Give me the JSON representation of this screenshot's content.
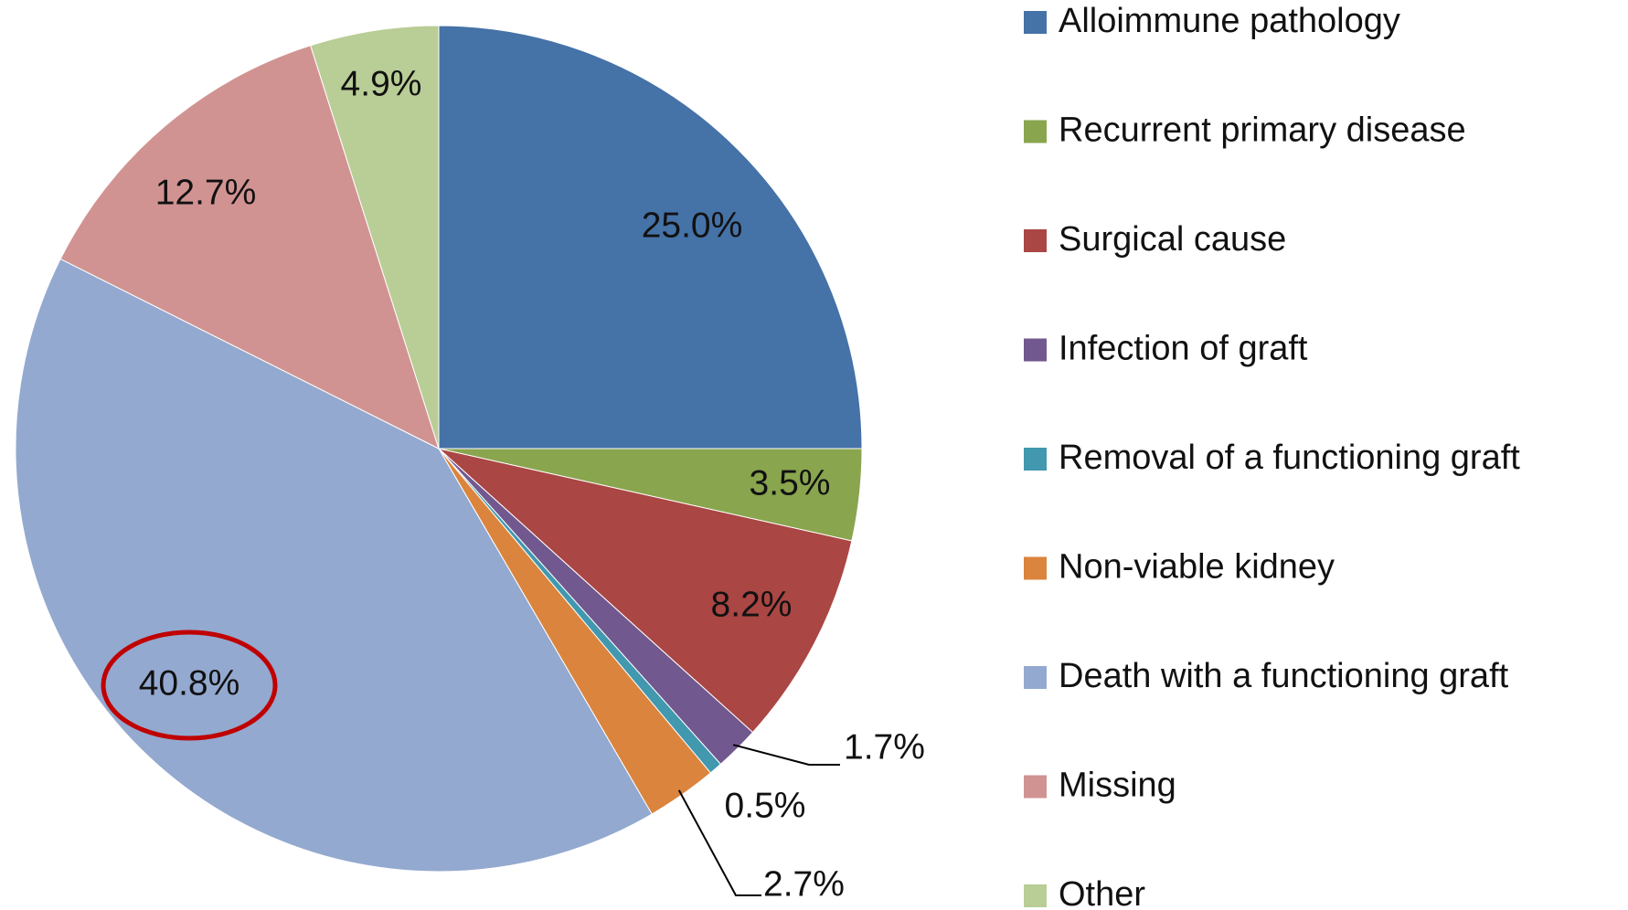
{
  "chart_data": {
    "type": "pie",
    "categories": [
      "Alloimmune pathology",
      "Recurrent primary disease",
      "Surgical cause",
      "Infection of graft",
      "Removal of a functioning graft",
      "Non-viable kidney",
      "Death with a functioning graft",
      "Missing",
      "Other"
    ],
    "values": [
      25.0,
      3.5,
      8.2,
      1.7,
      0.5,
      2.7,
      40.8,
      12.7,
      4.9
    ],
    "value_labels": [
      "25.0%",
      "3.5%",
      "8.2%",
      "1.7%",
      "0.5%",
      "2.7%",
      "40.8%",
      "12.7%",
      "4.9%"
    ],
    "colors": [
      "#4572a7",
      "#89a54e",
      "#aa4643",
      "#71588f",
      "#4198af",
      "#db843d",
      "#93a9cf",
      "#d19392",
      "#b9cd96"
    ],
    "legend": "right"
  }
}
